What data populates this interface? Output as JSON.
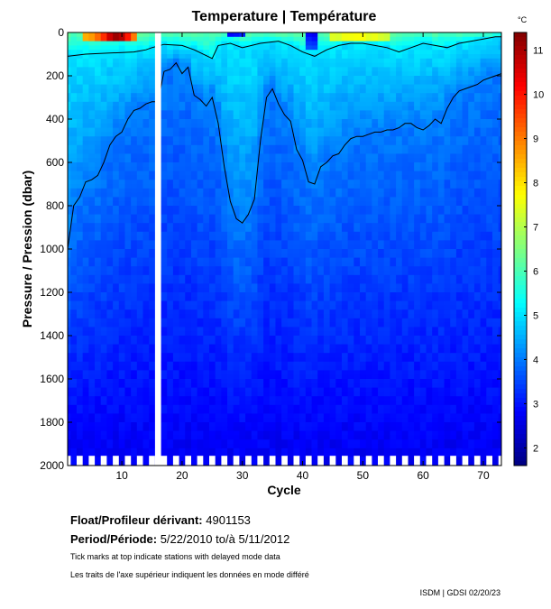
{
  "chart_data": {
    "type": "heatmap",
    "title": "Temperature | Température",
    "xlabel": "Cycle",
    "ylabel": "Pressure / Pression (dbar)",
    "colorbar_unit": "°C",
    "xlim": [
      1,
      73
    ],
    "ylim": [
      0,
      2000
    ],
    "y_inverted": true,
    "xticks": [
      10,
      20,
      30,
      40,
      50,
      60,
      70
    ],
    "yticks": [
      0,
      200,
      400,
      600,
      800,
      1000,
      1200,
      1400,
      1600,
      1800,
      2000
    ],
    "clim": [
      1.6,
      11.4
    ],
    "cticks": [
      2,
      3,
      4,
      5,
      6,
      7,
      8,
      9,
      10,
      11
    ],
    "missing_cycle": 16,
    "contour_levels": [
      4,
      5,
      6
    ],
    "contour_4_depth": [
      [
        1,
        1000
      ],
      [
        2,
        800
      ],
      [
        3,
        760
      ],
      [
        4,
        690
      ],
      [
        5,
        680
      ],
      [
        6,
        660
      ],
      [
        7,
        600
      ],
      [
        8,
        520
      ],
      [
        9,
        480
      ],
      [
        10,
        460
      ],
      [
        11,
        400
      ],
      [
        12,
        360
      ],
      [
        13,
        350
      ],
      [
        14,
        330
      ],
      [
        15,
        320
      ],
      [
        16,
        320
      ],
      [
        17,
        180
      ],
      [
        18,
        170
      ],
      [
        19,
        140
      ],
      [
        20,
        190
      ],
      [
        21,
        160
      ],
      [
        22,
        290
      ],
      [
        23,
        310
      ],
      [
        24,
        340
      ],
      [
        25,
        300
      ],
      [
        26,
        420
      ],
      [
        27,
        620
      ],
      [
        28,
        780
      ],
      [
        29,
        860
      ],
      [
        30,
        880
      ],
      [
        31,
        840
      ],
      [
        32,
        770
      ],
      [
        33,
        500
      ],
      [
        34,
        300
      ],
      [
        35,
        260
      ],
      [
        36,
        330
      ],
      [
        37,
        380
      ],
      [
        38,
        410
      ],
      [
        39,
        540
      ],
      [
        40,
        590
      ],
      [
        41,
        690
      ],
      [
        42,
        700
      ],
      [
        43,
        620
      ],
      [
        44,
        600
      ],
      [
        45,
        570
      ],
      [
        46,
        560
      ],
      [
        47,
        520
      ],
      [
        48,
        490
      ],
      [
        49,
        480
      ],
      [
        50,
        480
      ],
      [
        51,
        470
      ],
      [
        52,
        460
      ],
      [
        53,
        460
      ],
      [
        54,
        450
      ],
      [
        55,
        450
      ],
      [
        56,
        440
      ],
      [
        57,
        420
      ],
      [
        58,
        420
      ],
      [
        59,
        440
      ],
      [
        60,
        450
      ],
      [
        61,
        430
      ],
      [
        62,
        400
      ],
      [
        63,
        420
      ],
      [
        64,
        350
      ],
      [
        65,
        300
      ],
      [
        66,
        270
      ],
      [
        67,
        260
      ],
      [
        68,
        250
      ],
      [
        69,
        240
      ],
      [
        70,
        220
      ],
      [
        71,
        210
      ],
      [
        72,
        200
      ],
      [
        73,
        190
      ]
    ],
    "contour_5_depth": [
      [
        1,
        110
      ],
      [
        4,
        100
      ],
      [
        8,
        95
      ],
      [
        12,
        90
      ],
      [
        14,
        80
      ],
      [
        15,
        70
      ],
      [
        17,
        55
      ],
      [
        20,
        60
      ],
      [
        22,
        80
      ],
      [
        25,
        120
      ],
      [
        26,
        60
      ],
      [
        28,
        50
      ],
      [
        30,
        70
      ],
      [
        33,
        50
      ],
      [
        36,
        40
      ],
      [
        38,
        60
      ],
      [
        40,
        90
      ],
      [
        42,
        110
      ],
      [
        44,
        80
      ],
      [
        46,
        60
      ],
      [
        48,
        50
      ],
      [
        50,
        50
      ],
      [
        52,
        60
      ],
      [
        54,
        70
      ],
      [
        56,
        90
      ],
      [
        58,
        70
      ],
      [
        60,
        50
      ],
      [
        62,
        60
      ],
      [
        64,
        70
      ],
      [
        66,
        50
      ],
      [
        68,
        40
      ],
      [
        70,
        30
      ],
      [
        72,
        20
      ],
      [
        73,
        20
      ]
    ],
    "delayed_mode_ticks": [
      [
        1,
        15
      ],
      [
        17,
        34
      ],
      [
        35,
        55
      ],
      [
        56,
        73
      ]
    ]
  },
  "info": {
    "float_label": "Float/Profileur dérivant:",
    "float_id": "4901153",
    "period_label": "Period/Période:",
    "period_start": "5/22/2010",
    "period_to": "to/à",
    "period_end": "5/11/2012",
    "note_en": "Tick marks at top indicate stations with delayed mode data",
    "note_fr": "Les traits de l'axe supérieur indiquent les données en mode différé",
    "credit": "ISDM | GDSI 02/20/23"
  }
}
